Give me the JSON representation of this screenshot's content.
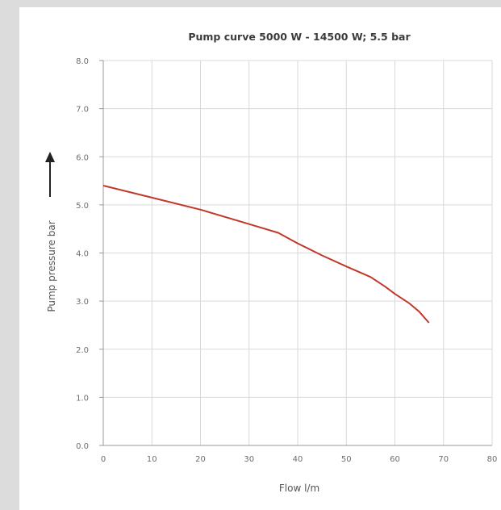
{
  "chart_data": {
    "type": "line",
    "title": "Pump curve 5000 W - 14500 W; 5.5 bar",
    "xlabel": "Flow l/m",
    "ylabel": "Pump pressure bar",
    "xlim": [
      0,
      80
    ],
    "ylim": [
      0.0,
      8.0
    ],
    "x_ticks": [
      "0",
      "10",
      "20",
      "30",
      "40",
      "50",
      "60",
      "70",
      "80"
    ],
    "y_ticks": [
      "0.0",
      "1.0",
      "2.0",
      "3.0",
      "4.0",
      "5.0",
      "6.0",
      "7.0",
      "8.0"
    ],
    "grid": true,
    "line_color": "#c0392b",
    "series": [
      {
        "x": [
          0,
          10,
          20,
          30,
          36,
          40,
          45,
          50,
          55,
          58,
          60,
          63,
          65,
          67
        ],
        "values": [
          5.4,
          5.15,
          4.9,
          4.6,
          4.42,
          4.2,
          3.95,
          3.72,
          3.5,
          3.3,
          3.15,
          2.95,
          2.78,
          2.55
        ]
      }
    ]
  }
}
